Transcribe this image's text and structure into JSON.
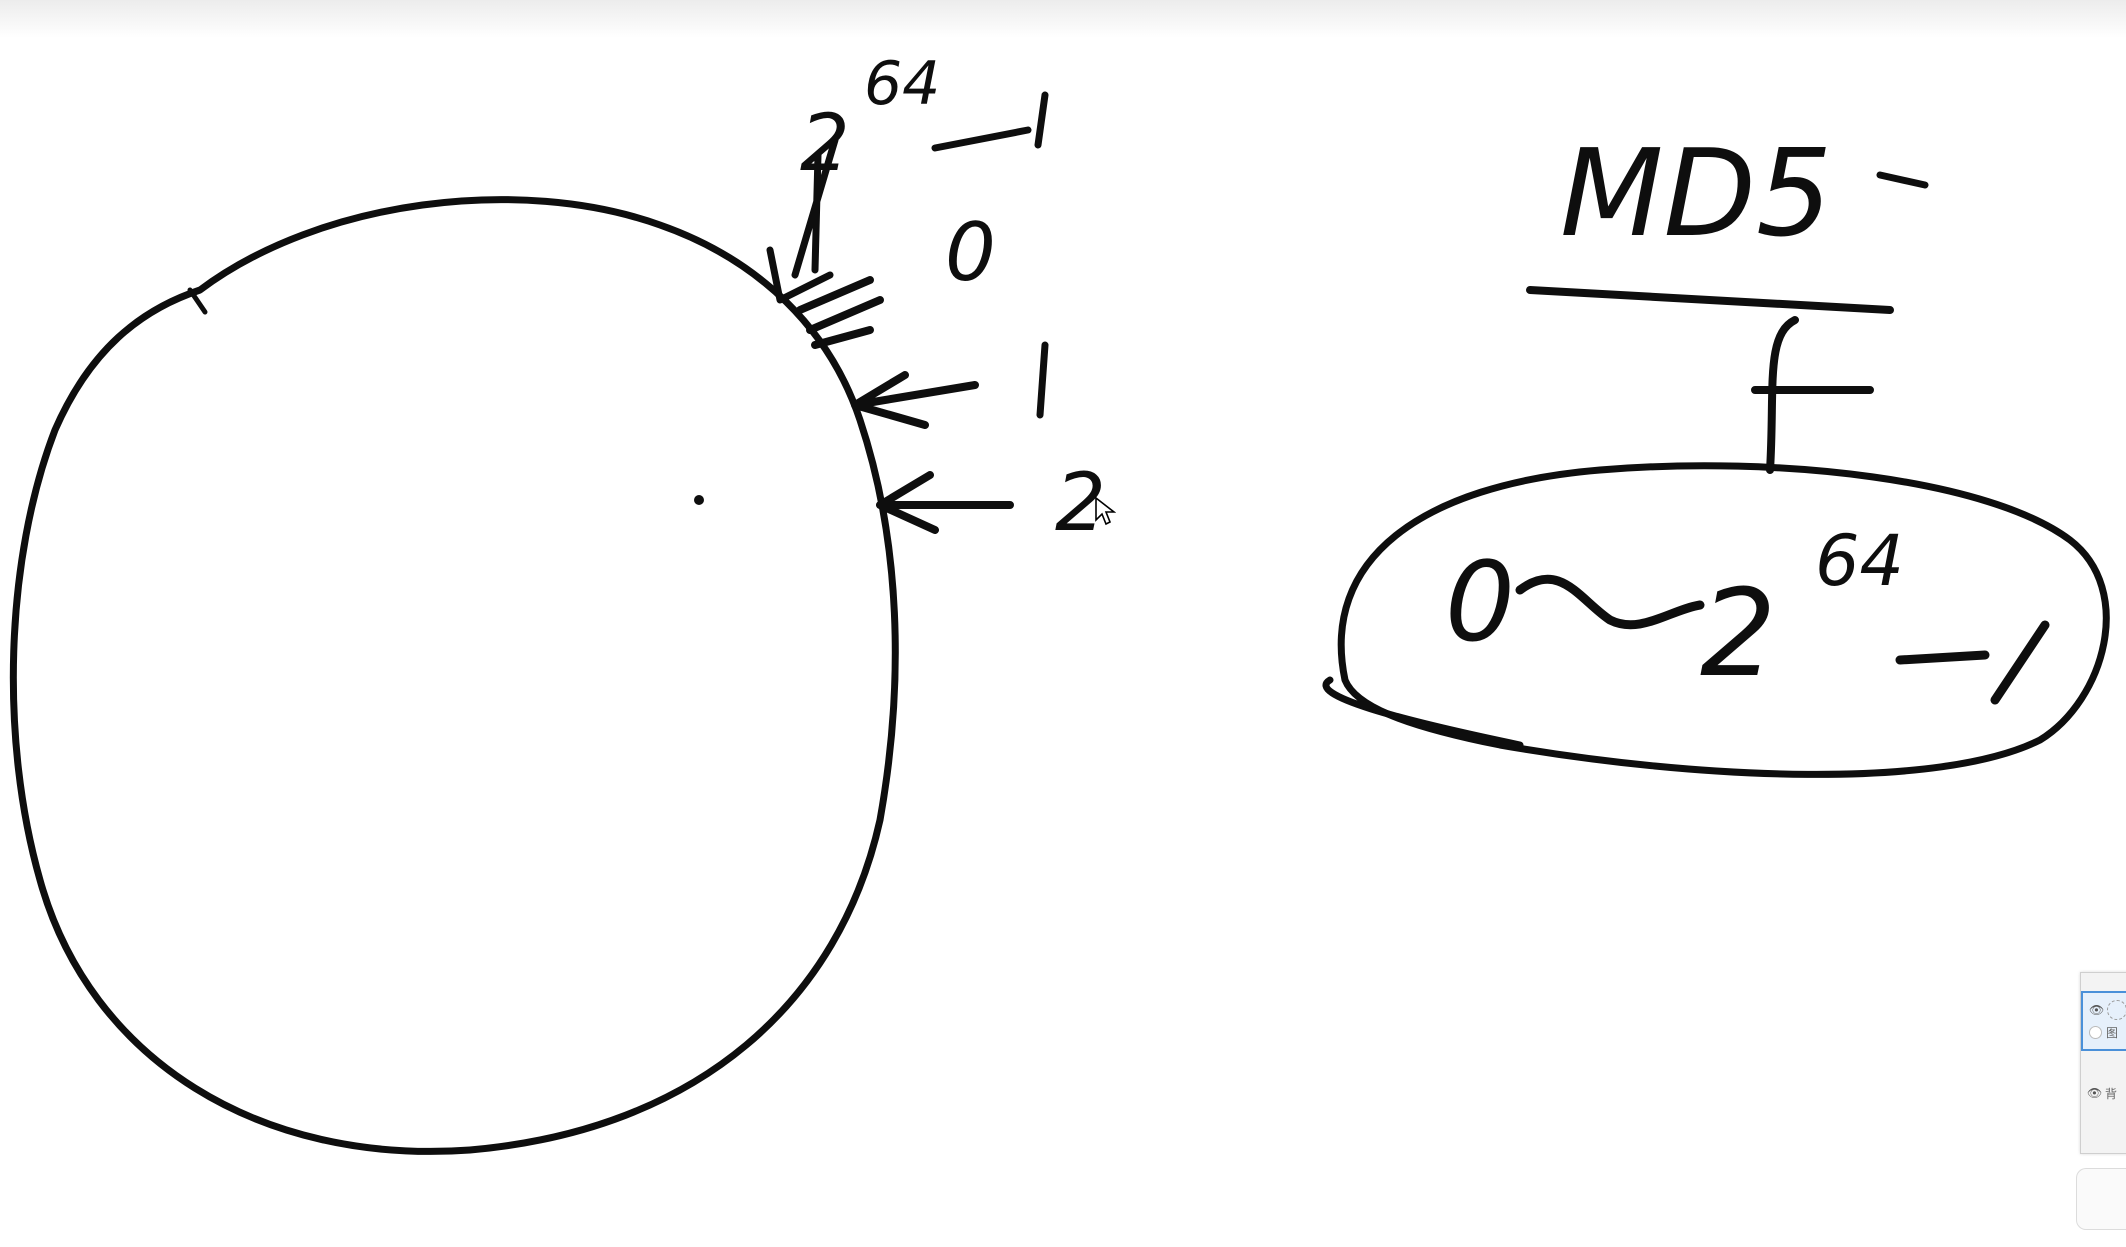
{
  "canvas": {
    "background": "#ffffff",
    "ink_color": "#0e0e0e"
  },
  "handwriting": {
    "left_top_exponent": "64",
    "left_top_label": "2",
    "left_top_suffix": "-1",
    "label_zero": "0",
    "label_one": "1",
    "label_two": "2",
    "hash_label": "MD5",
    "range_start": "0",
    "range_base": "2",
    "range_exponent": "64",
    "range_suffix": "-1"
  },
  "layers_panel": {
    "rows": [
      {
        "visibility_icon": "eye-icon",
        "label": "图"
      },
      {
        "visibility_icon": "eye-icon",
        "label": "背"
      }
    ]
  }
}
